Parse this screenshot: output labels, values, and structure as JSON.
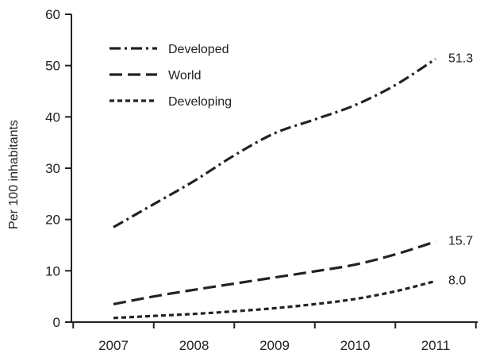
{
  "chart_data": {
    "type": "line",
    "title": "",
    "xlabel": "",
    "ylabel": "Per 100 inhabitants",
    "categories": [
      "2007",
      "2008",
      "2009",
      "2010",
      "2011"
    ],
    "ylim": [
      0,
      60
    ],
    "yticks": [
      "0",
      "10",
      "20",
      "30",
      "40",
      "50",
      "60"
    ],
    "grid": false,
    "legend_position": "top-left",
    "series": [
      {
        "name": "Developed",
        "dash": "dash-dot",
        "x": [
          2007.0,
          2007.5,
          2008.0,
          2008.5,
          2009.0,
          2009.5,
          2010.0,
          2010.5,
          2011.0
        ],
        "values": [
          18.5,
          23.0,
          27.5,
          32.5,
          36.8,
          39.5,
          42.3,
          46.2,
          51.3
        ],
        "end_label": "51.3"
      },
      {
        "name": "World",
        "dash": "long-dash",
        "x": [
          2007.0,
          2007.5,
          2008.0,
          2008.5,
          2009.0,
          2009.5,
          2010.0,
          2010.5,
          2011.0
        ],
        "values": [
          3.5,
          5.0,
          6.3,
          7.5,
          8.7,
          9.9,
          11.2,
          13.2,
          15.7
        ],
        "end_label": "15.7"
      },
      {
        "name": "Developing",
        "dash": "short-dash",
        "x": [
          2007.0,
          2007.5,
          2008.0,
          2008.5,
          2009.0,
          2009.5,
          2010.0,
          2010.5,
          2011.0
        ],
        "values": [
          0.8,
          1.2,
          1.6,
          2.1,
          2.7,
          3.5,
          4.5,
          6.0,
          8.0
        ],
        "end_label": "8.0"
      }
    ]
  }
}
